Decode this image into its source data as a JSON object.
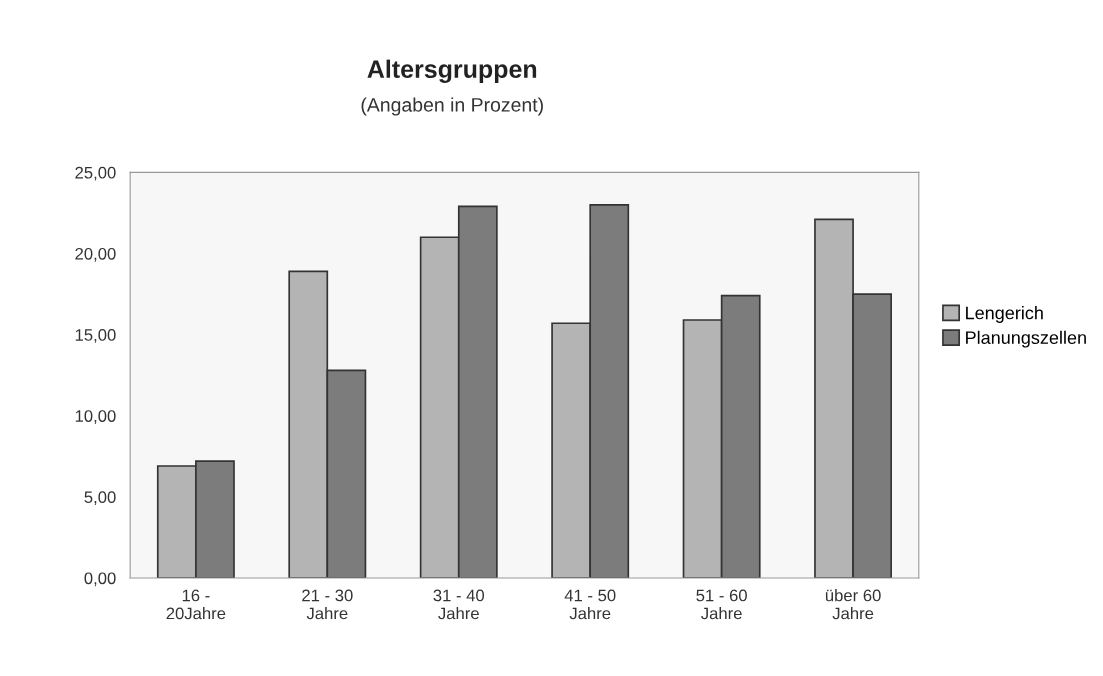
{
  "chart_data": {
    "type": "bar",
    "title": "Altersgruppen",
    "subtitle": "(Angaben in Prozent)",
    "categories": [
      "16 -\n20Jahre",
      "21 - 30\nJahre",
      "31 - 40\nJahre",
      "41 - 50\nJahre",
      "51 - 60\nJahre",
      "über 60\nJahre"
    ],
    "series": [
      {
        "name": "Lengerich",
        "color": "#b4b4b4",
        "values": [
          6.9,
          18.9,
          21.0,
          15.7,
          15.9,
          22.1
        ]
      },
      {
        "name": "Planungszellen",
        "color": "#7c7c7c",
        "values": [
          7.2,
          12.8,
          22.9,
          23.0,
          17.4,
          17.5
        ]
      }
    ],
    "ylim": [
      0,
      25
    ],
    "yticks": [
      {
        "value": 0,
        "label": "0,00"
      },
      {
        "value": 5,
        "label": "5,00"
      },
      {
        "value": 10,
        "label": "10,00"
      },
      {
        "value": 15,
        "label": "15,00"
      },
      {
        "value": 20,
        "label": "20,00"
      },
      {
        "value": 25,
        "label": "25,00"
      }
    ],
    "grid": false,
    "legend": "right"
  }
}
